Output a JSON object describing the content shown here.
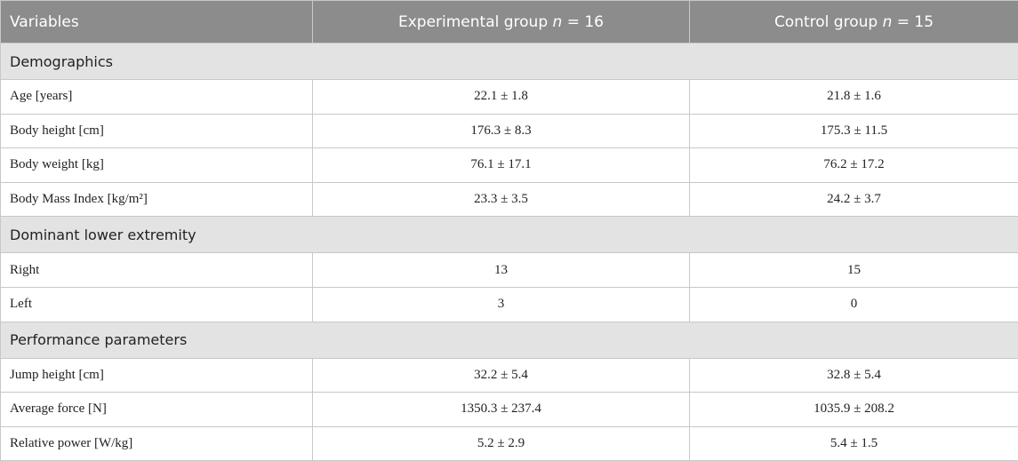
{
  "table": {
    "header": [
      {
        "label": "Variables"
      },
      {
        "label": "Experimental group",
        "n_symbol": "n",
        "n_value": "= 16"
      },
      {
        "label": "Control group",
        "n_symbol": "n",
        "n_value": "= 15"
      }
    ],
    "sections": [
      {
        "title": "Demographics",
        "rows": [
          [
            "Age [years]",
            "22.1 ± 1.8",
            "21.8 ± 1.6"
          ],
          [
            "Body height [cm]",
            "176.3 ± 8.3",
            "175.3 ± 11.5"
          ],
          [
            "Body weight [kg]",
            "76.1 ± 17.1",
            "76.2 ± 17.2"
          ],
          [
            "Body Mass Index [kg/m²]",
            "23.3 ± 3.5",
            "24.2 ± 3.7"
          ]
        ]
      },
      {
        "title": "Dominant lower extremity",
        "rows": [
          [
            "Right",
            "13",
            "15"
          ],
          [
            "Left",
            "3",
            "0"
          ]
        ]
      },
      {
        "title": "Performance parameters",
        "rows": [
          [
            "Jump height [cm]",
            "32.2 ± 5.4",
            "32.8 ± 5.4"
          ],
          [
            "Average force [N]",
            "1350.3 ± 237.4",
            "1035.9 ± 208.2"
          ],
          [
            "Relative power [W/kg]",
            "5.2 ± 2.9",
            "5.4 ± 1.5"
          ]
        ]
      }
    ]
  }
}
